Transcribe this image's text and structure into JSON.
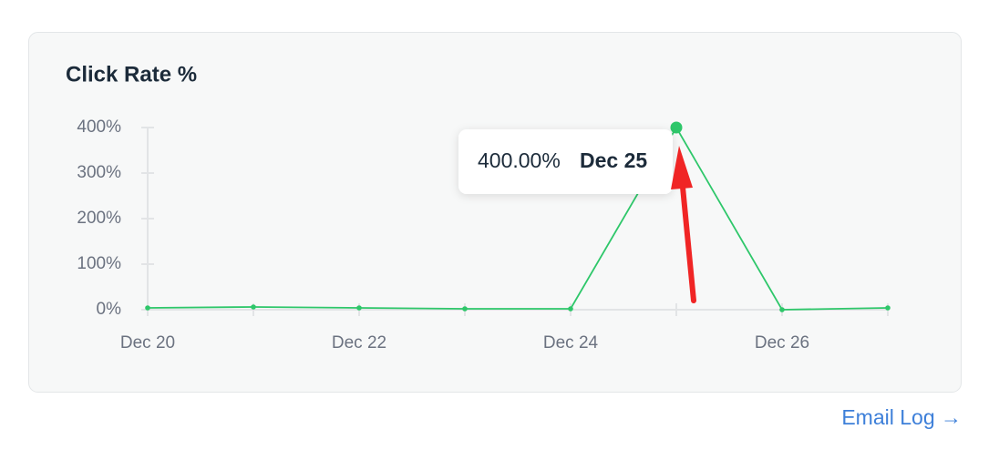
{
  "chart_data": {
    "type": "line",
    "title": "Click Rate %",
    "categories": [
      "Dec 20",
      null,
      "Dec 22",
      null,
      "Dec 24",
      null,
      "Dec 26",
      null
    ],
    "values": [
      4,
      6,
      4,
      2,
      2,
      400,
      0,
      4
    ],
    "color": "#2ec76a",
    "ylim": [
      0,
      400
    ],
    "yticks": [
      {
        "value": 0,
        "label": "0%"
      },
      {
        "value": 100,
        "label": "100%"
      },
      {
        "value": 200,
        "label": "200%"
      },
      {
        "value": 300,
        "label": "300%"
      },
      {
        "value": 400,
        "label": "400%"
      }
    ],
    "tooltip": {
      "value": "400.00%",
      "date": "Dec 25"
    }
  },
  "link": "Email Log →"
}
